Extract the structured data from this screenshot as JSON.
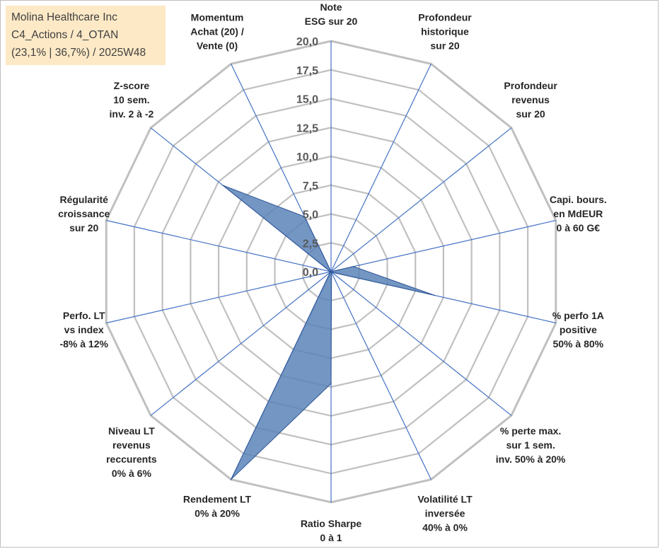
{
  "info_box": {
    "line1": "Molina Healthcare Inc",
    "line2": "C4_Actions / 4_OTAN",
    "line3": "(23,1% | 36,7%) / 2025W48"
  },
  "colors": {
    "grid": "#c0c0c0",
    "spoke": "#4472c4",
    "fill": "#5b84b8",
    "stroke": "#2f5597"
  },
  "chart_data": {
    "type": "radar",
    "title": "",
    "rmin": 0,
    "rmax": 20,
    "tick_step": 2.5,
    "tick_labels": [
      "0,0",
      "2,5",
      "5,0",
      "7,5",
      "10,0",
      "12,5",
      "15,0",
      "17,5",
      "20,0"
    ],
    "axes": [
      {
        "lines": [
          "Note",
          "ESG sur 20"
        ],
        "value": 0
      },
      {
        "lines": [
          "Profondeur",
          "historique",
          "sur 20"
        ],
        "value": 0
      },
      {
        "lines": [
          "Profondeur",
          "revenus",
          "sur 20"
        ],
        "value": 0
      },
      {
        "lines": [
          "Capi. bours.",
          "en MdEUR",
          "0 à 60 G€"
        ],
        "value": 2.0
      },
      {
        "lines": [
          "% perfo 1A",
          "positive",
          "50% à 80%"
        ],
        "value": 9.2
      },
      {
        "lines": [
          "% perte max.",
          "sur 1 sem.",
          "inv. 50% à 20%"
        ],
        "value": 0.1
      },
      {
        "lines": [
          "Volatilité LT",
          "inversée",
          "40% à 0%"
        ],
        "value": 0.1
      },
      {
        "lines": [
          "Ratio Sharpe",
          "0 à 1"
        ],
        "value": 9.7
      },
      {
        "lines": [
          "Rendement LT",
          "0% à 20%"
        ],
        "value": 20.0
      },
      {
        "lines": [
          "Niveau LT",
          "revenus",
          "reccurents",
          "0% à 6%"
        ],
        "value": 0.1
      },
      {
        "lines": [
          "Perfo. LT",
          "vs index",
          "-8% à 12%"
        ],
        "value": 0.1
      },
      {
        "lines": [
          "Régularité",
          "croissance",
          "sur 20"
        ],
        "value": 0.1
      },
      {
        "lines": [
          "Z-score",
          "10 sem.",
          "inv. 2 à -2"
        ],
        "value": 12.0
      },
      {
        "lines": [
          "Momentum",
          "Achat (20) /",
          "Vente (0)"
        ],
        "value": 5.3
      }
    ]
  }
}
